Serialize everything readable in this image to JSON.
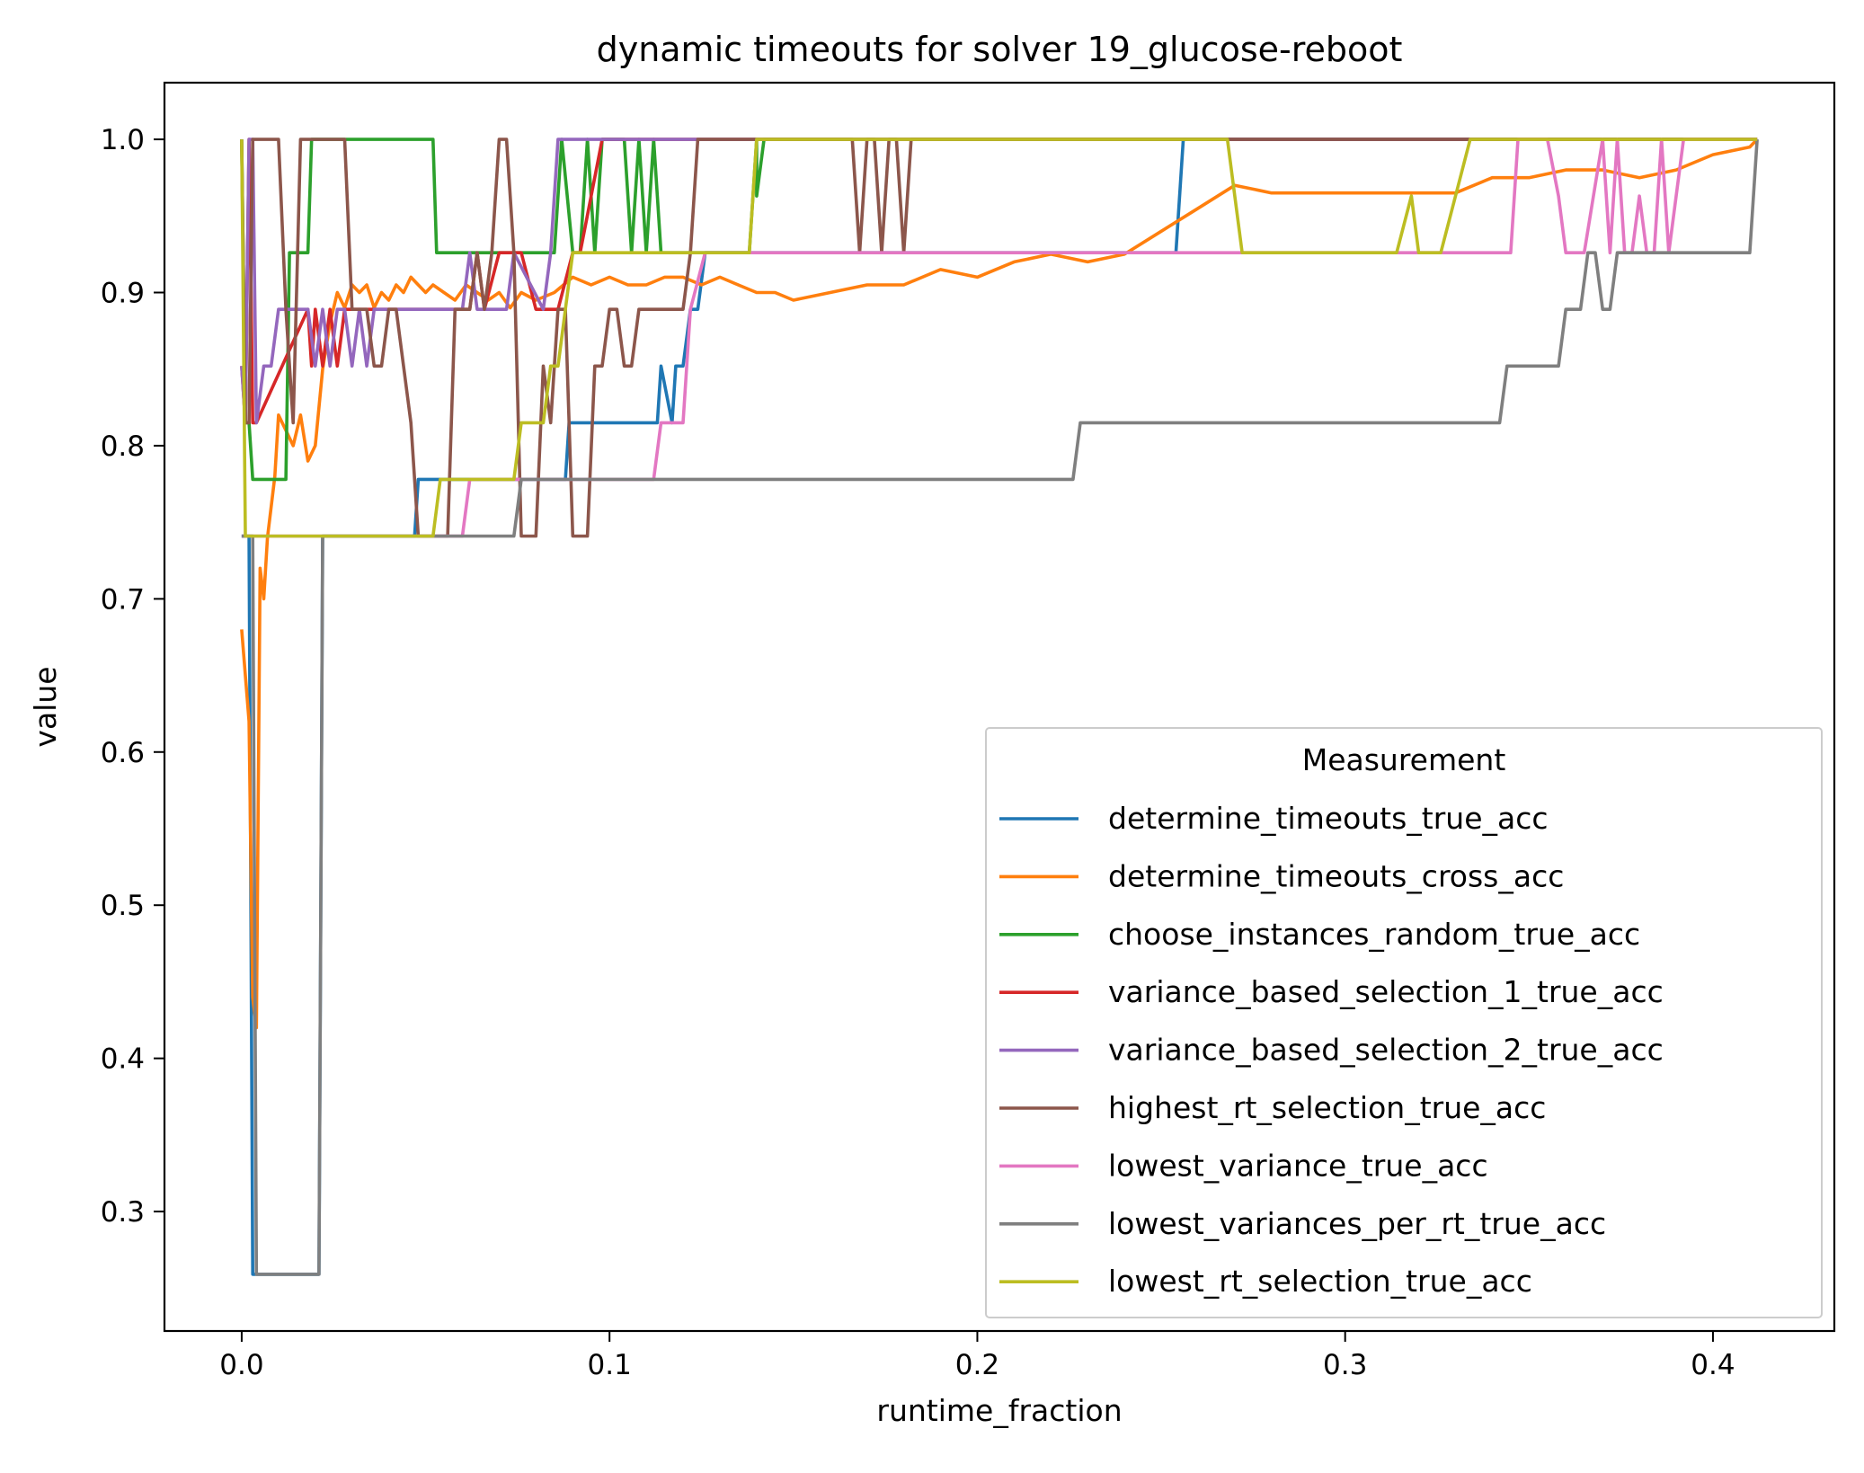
{
  "chart_data": {
    "type": "line",
    "title": "dynamic timeouts for solver 19_glucose-reboot",
    "xlabel": "runtime_fraction",
    "ylabel": "value",
    "xlim": [
      -0.021,
      0.433
    ],
    "ylim": [
      0.222,
      1.037
    ],
    "xticks": [
      0.0,
      0.1,
      0.2,
      0.3,
      0.4
    ],
    "xtick_labels": [
      "0.0",
      "0.1",
      "0.2",
      "0.3",
      "0.4"
    ],
    "yticks": [
      0.3,
      0.4,
      0.5,
      0.6,
      0.7,
      0.8,
      0.9,
      1.0
    ],
    "ytick_labels": [
      "0.3",
      "0.4",
      "0.5",
      "0.6",
      "0.7",
      "0.8",
      "0.9",
      "1.0"
    ],
    "grid": false,
    "legend": {
      "title": "Measurement",
      "placement": "lower-right"
    },
    "series": [
      {
        "name": "determine_timeouts_true_acc",
        "color": "#1f77b4",
        "x": [
          0.0,
          0.002,
          0.003,
          0.021,
          0.022,
          0.047,
          0.048,
          0.088,
          0.089,
          0.113,
          0.114,
          0.117,
          0.118,
          0.12,
          0.122,
          0.124,
          0.126,
          0.128,
          0.254,
          0.256,
          0.41,
          0.412
        ],
        "y": [
          0.741,
          0.741,
          0.259,
          0.259,
          0.741,
          0.741,
          0.778,
          0.778,
          0.815,
          0.815,
          0.852,
          0.815,
          0.852,
          0.852,
          0.889,
          0.889,
          0.926,
          0.926,
          0.926,
          1.0,
          1.0,
          1.0
        ]
      },
      {
        "name": "determine_timeouts_cross_acc",
        "color": "#ff7f0e",
        "x": [
          0.0,
          0.002,
          0.003,
          0.004,
          0.005,
          0.006,
          0.007,
          0.008,
          0.009,
          0.01,
          0.012,
          0.014,
          0.016,
          0.018,
          0.02,
          0.022,
          0.024,
          0.026,
          0.028,
          0.03,
          0.032,
          0.034,
          0.036,
          0.038,
          0.04,
          0.042,
          0.044,
          0.046,
          0.048,
          0.05,
          0.052,
          0.055,
          0.058,
          0.061,
          0.064,
          0.067,
          0.07,
          0.073,
          0.076,
          0.08,
          0.085,
          0.09,
          0.095,
          0.1,
          0.105,
          0.11,
          0.115,
          0.12,
          0.125,
          0.13,
          0.135,
          0.14,
          0.145,
          0.15,
          0.16,
          0.17,
          0.18,
          0.19,
          0.2,
          0.21,
          0.22,
          0.23,
          0.24,
          0.25,
          0.26,
          0.27,
          0.28,
          0.29,
          0.3,
          0.31,
          0.32,
          0.33,
          0.34,
          0.35,
          0.36,
          0.37,
          0.38,
          0.39,
          0.4,
          0.41,
          0.412
        ],
        "y": [
          0.68,
          0.62,
          0.44,
          0.42,
          0.72,
          0.7,
          0.74,
          0.76,
          0.78,
          0.82,
          0.81,
          0.8,
          0.82,
          0.79,
          0.8,
          0.85,
          0.88,
          0.9,
          0.89,
          0.905,
          0.9,
          0.905,
          0.89,
          0.9,
          0.895,
          0.905,
          0.9,
          0.91,
          0.905,
          0.9,
          0.905,
          0.9,
          0.895,
          0.905,
          0.9,
          0.895,
          0.9,
          0.89,
          0.9,
          0.895,
          0.9,
          0.91,
          0.905,
          0.91,
          0.905,
          0.905,
          0.91,
          0.91,
          0.905,
          0.91,
          0.905,
          0.9,
          0.9,
          0.895,
          0.9,
          0.905,
          0.905,
          0.915,
          0.91,
          0.92,
          0.925,
          0.92,
          0.925,
          0.94,
          0.955,
          0.97,
          0.965,
          0.965,
          0.965,
          0.965,
          0.965,
          0.965,
          0.975,
          0.975,
          0.98,
          0.98,
          0.975,
          0.98,
          0.99,
          0.995,
          1.0
        ]
      },
      {
        "name": "choose_instances_random_true_acc",
        "color": "#2ca02c",
        "x": [
          0.0,
          0.001,
          0.002,
          0.003,
          0.004,
          0.012,
          0.013,
          0.018,
          0.019,
          0.021,
          0.022,
          0.052,
          0.053,
          0.085,
          0.087,
          0.09,
          0.092,
          0.094,
          0.096,
          0.098,
          0.1,
          0.104,
          0.106,
          0.108,
          0.11,
          0.112,
          0.114,
          0.138,
          0.14,
          0.14,
          0.142,
          0.41,
          0.412
        ],
        "y": [
          1.0,
          0.815,
          0.815,
          0.778,
          0.778,
          0.778,
          0.926,
          0.926,
          1.0,
          1.0,
          1.0,
          1.0,
          0.926,
          0.926,
          1.0,
          0.926,
          0.926,
          1.0,
          0.926,
          1.0,
          1.0,
          1.0,
          0.926,
          1.0,
          0.926,
          1.0,
          0.926,
          0.926,
          1.0,
          0.963,
          1.0,
          1.0,
          1.0
        ]
      },
      {
        "name": "variance_based_selection_1_true_acc",
        "color": "#d62728",
        "x": [
          0.0,
          0.001,
          0.002,
          0.003,
          0.004,
          0.018,
          0.019,
          0.02,
          0.022,
          0.024,
          0.026,
          0.028,
          0.03,
          0.032,
          0.034,
          0.036,
          0.038,
          0.062,
          0.064,
          0.066,
          0.07,
          0.072,
          0.076,
          0.08,
          0.086,
          0.09,
          0.092,
          0.098,
          0.1,
          0.102,
          0.41,
          0.412
        ],
        "y": [
          0.852,
          0.815,
          1.0,
          0.815,
          0.815,
          0.889,
          0.852,
          0.889,
          0.852,
          0.889,
          0.852,
          0.889,
          0.889,
          0.889,
          0.889,
          0.889,
          0.889,
          0.889,
          0.926,
          0.889,
          0.926,
          0.926,
          0.926,
          0.889,
          0.889,
          0.926,
          0.926,
          1.0,
          1.0,
          1.0,
          1.0,
          1.0
        ]
      },
      {
        "name": "variance_based_selection_2_true_acc",
        "color": "#9467bd",
        "x": [
          0.0,
          0.001,
          0.002,
          0.003,
          0.004,
          0.006,
          0.008,
          0.01,
          0.012,
          0.014,
          0.016,
          0.018,
          0.02,
          0.022,
          0.024,
          0.026,
          0.028,
          0.03,
          0.032,
          0.034,
          0.036,
          0.038,
          0.06,
          0.062,
          0.064,
          0.072,
          0.074,
          0.082,
          0.084,
          0.086,
          0.09,
          0.092,
          0.41,
          0.412
        ],
        "y": [
          0.852,
          0.815,
          1.0,
          1.0,
          0.815,
          0.852,
          0.852,
          0.889,
          0.889,
          0.889,
          0.889,
          0.889,
          0.852,
          0.889,
          0.852,
          0.889,
          0.889,
          0.852,
          0.889,
          0.852,
          0.889,
          0.889,
          0.889,
          0.926,
          0.889,
          0.889,
          0.926,
          0.889,
          0.926,
          1.0,
          1.0,
          1.0,
          1.0,
          1.0
        ]
      },
      {
        "name": "highest_rt_selection_true_acc",
        "color": "#8c564b",
        "x": [
          0.0,
          0.001,
          0.002,
          0.003,
          0.004,
          0.006,
          0.008,
          0.01,
          0.012,
          0.014,
          0.016,
          0.018,
          0.02,
          0.022,
          0.024,
          0.026,
          0.028,
          0.03,
          0.032,
          0.034,
          0.036,
          0.038,
          0.04,
          0.042,
          0.044,
          0.046,
          0.048,
          0.05,
          0.052,
          0.054,
          0.056,
          0.058,
          0.06,
          0.062,
          0.064,
          0.066,
          0.068,
          0.07,
          0.072,
          0.074,
          0.076,
          0.078,
          0.08,
          0.082,
          0.084,
          0.086,
          0.088,
          0.09,
          0.092,
          0.094,
          0.096,
          0.098,
          0.1,
          0.102,
          0.104,
          0.106,
          0.108,
          0.11,
          0.112,
          0.114,
          0.116,
          0.118,
          0.12,
          0.122,
          0.124,
          0.126,
          0.128,
          0.13,
          0.134,
          0.136,
          0.138,
          0.14,
          0.142,
          0.15,
          0.166,
          0.168,
          0.17,
          0.172,
          0.174,
          0.176,
          0.178,
          0.18,
          0.182,
          0.186,
          0.248,
          0.25,
          0.41,
          0.412
        ],
        "y": [
          1.0,
          0.815,
          0.815,
          1.0,
          1.0,
          1.0,
          1.0,
          1.0,
          0.889,
          0.815,
          1.0,
          1.0,
          1.0,
          1.0,
          1.0,
          1.0,
          1.0,
          0.889,
          0.889,
          0.889,
          0.852,
          0.852,
          0.889,
          0.889,
          0.852,
          0.815,
          0.741,
          0.741,
          0.741,
          0.741,
          0.741,
          0.889,
          0.889,
          0.889,
          0.926,
          0.889,
          0.926,
          1.0,
          1.0,
          0.926,
          0.741,
          0.741,
          0.741,
          0.852,
          0.815,
          0.889,
          0.889,
          0.741,
          0.741,
          0.741,
          0.852,
          0.852,
          0.889,
          0.889,
          0.852,
          0.852,
          0.889,
          0.889,
          0.889,
          0.889,
          0.889,
          0.889,
          0.889,
          0.926,
          1.0,
          1.0,
          1.0,
          1.0,
          1.0,
          1.0,
          1.0,
          1.0,
          1.0,
          1.0,
          1.0,
          0.926,
          1.0,
          1.0,
          0.926,
          1.0,
          1.0,
          0.926,
          1.0,
          1.0,
          1.0,
          1.0,
          1.0,
          1.0
        ]
      },
      {
        "name": "lowest_variance_true_acc",
        "color": "#e377c2",
        "x": [
          0.0,
          0.001,
          0.002,
          0.003,
          0.004,
          0.006,
          0.014,
          0.016,
          0.018,
          0.02,
          0.022,
          0.024,
          0.026,
          0.028,
          0.03,
          0.032,
          0.034,
          0.036,
          0.038,
          0.06,
          0.062,
          0.072,
          0.074,
          0.112,
          0.114,
          0.12,
          0.122,
          0.126,
          0.128,
          0.345,
          0.347,
          0.355,
          0.358,
          0.36,
          0.365,
          0.37,
          0.372,
          0.374,
          0.376,
          0.378,
          0.38,
          0.382,
          0.384,
          0.386,
          0.388,
          0.39,
          0.392,
          0.394,
          0.41,
          0.412
        ],
        "y": [
          0.741,
          0.741,
          0.741,
          0.741,
          0.741,
          0.741,
          0.741,
          0.741,
          0.741,
          0.741,
          0.741,
          0.741,
          0.741,
          0.741,
          0.741,
          0.741,
          0.741,
          0.741,
          0.741,
          0.741,
          0.778,
          0.778,
          0.778,
          0.778,
          0.815,
          0.815,
          0.889,
          0.926,
          0.926,
          0.926,
          1.0,
          1.0,
          0.963,
          0.926,
          0.926,
          1.0,
          0.926,
          1.0,
          0.926,
          0.926,
          0.963,
          0.926,
          0.926,
          1.0,
          0.926,
          0.963,
          1.0,
          1.0,
          1.0,
          1.0
        ]
      },
      {
        "name": "lowest_variances_per_rt_true_acc",
        "color": "#7f7f7f",
        "x": [
          0.0,
          0.001,
          0.002,
          0.003,
          0.004,
          0.006,
          0.021,
          0.022,
          0.052,
          0.074,
          0.076,
          0.226,
          0.228,
          0.342,
          0.344,
          0.35,
          0.352,
          0.358,
          0.36,
          0.364,
          0.366,
          0.368,
          0.37,
          0.372,
          0.374,
          0.41,
          0.412
        ],
        "y": [
          0.741,
          0.741,
          0.741,
          0.741,
          0.259,
          0.259,
          0.259,
          0.741,
          0.741,
          0.741,
          0.778,
          0.778,
          0.815,
          0.815,
          0.852,
          0.852,
          0.852,
          0.852,
          0.889,
          0.889,
          0.926,
          0.926,
          0.889,
          0.889,
          0.926,
          0.926,
          1.0
        ]
      },
      {
        "name": "lowest_rt_selection_true_acc",
        "color": "#bcbd22",
        "x": [
          0.0,
          0.001,
          0.002,
          0.003,
          0.004,
          0.006,
          0.048,
          0.052,
          0.054,
          0.074,
          0.076,
          0.082,
          0.084,
          0.086,
          0.088,
          0.09,
          0.092,
          0.094,
          0.138,
          0.14,
          0.268,
          0.272,
          0.31,
          0.314,
          0.318,
          0.32,
          0.324,
          0.326,
          0.33,
          0.334,
          0.336,
          0.338,
          0.41,
          0.412
        ],
        "y": [
          1.0,
          0.741,
          0.741,
          0.741,
          0.741,
          0.741,
          0.741,
          0.741,
          0.778,
          0.778,
          0.815,
          0.815,
          0.852,
          0.852,
          0.889,
          0.926,
          0.926,
          0.926,
          0.926,
          1.0,
          1.0,
          0.926,
          0.926,
          0.926,
          0.963,
          0.926,
          0.926,
          0.926,
          0.963,
          1.0,
          1.0,
          1.0,
          1.0,
          1.0
        ]
      }
    ]
  }
}
